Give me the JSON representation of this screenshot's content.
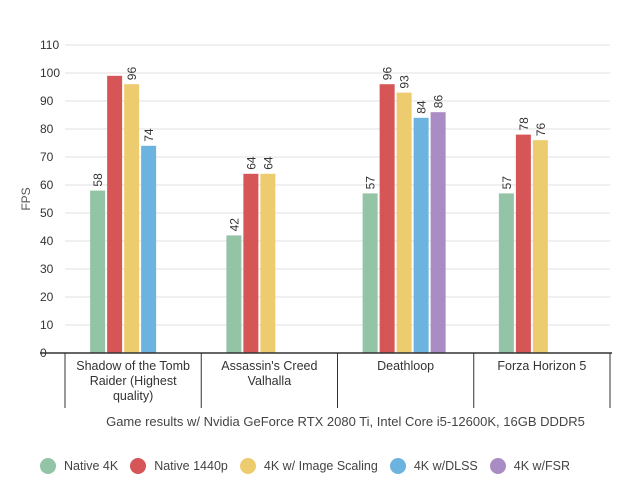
{
  "chart_data": {
    "type": "bar",
    "title": "",
    "xlabel": "Game results w/ Nvidia GeForce RTX 2080 Ti, Intel Core i5-12600K, 16GB DDDR5",
    "ylabel": "FPS",
    "ylim": [
      0,
      110
    ],
    "yticks": [
      "0",
      "10",
      "20",
      "30",
      "40",
      "50",
      "60",
      "70",
      "80",
      "90",
      "100",
      "110"
    ],
    "grid": true,
    "legend_position": "bottom",
    "categories": [
      "Shadow of the Tomb Raider (Highest quality)",
      "Assassin's Creed Valhalla",
      "Deathloop",
      "Forza Horizon 5"
    ],
    "series": [
      {
        "name": "Native 4K",
        "color": "#93c4a5",
        "values": [
          58,
          42,
          57,
          57
        ],
        "labels": [
          "58",
          "42",
          "57",
          "57"
        ]
      },
      {
        "name": "Native 1440p",
        "color": "#d65658",
        "values": [
          99,
          64,
          96,
          78
        ],
        "labels": [
          "",
          "64",
          "96",
          "78"
        ]
      },
      {
        "name": "4K w/ Image Scaling",
        "color": "#edcc70",
        "values": [
          96,
          64,
          93,
          76
        ],
        "labels": [
          "96",
          "64",
          "93",
          "76"
        ]
      },
      {
        "name": "4K w/DLSS",
        "color": "#6cb3e0",
        "values": [
          74,
          null,
          84,
          null
        ],
        "labels": [
          "74",
          "",
          "84",
          ""
        ]
      },
      {
        "name": "4K w/FSR",
        "color": "#a98cc4",
        "values": [
          null,
          null,
          86,
          null
        ],
        "labels": [
          "",
          "",
          "86",
          ""
        ]
      }
    ]
  }
}
